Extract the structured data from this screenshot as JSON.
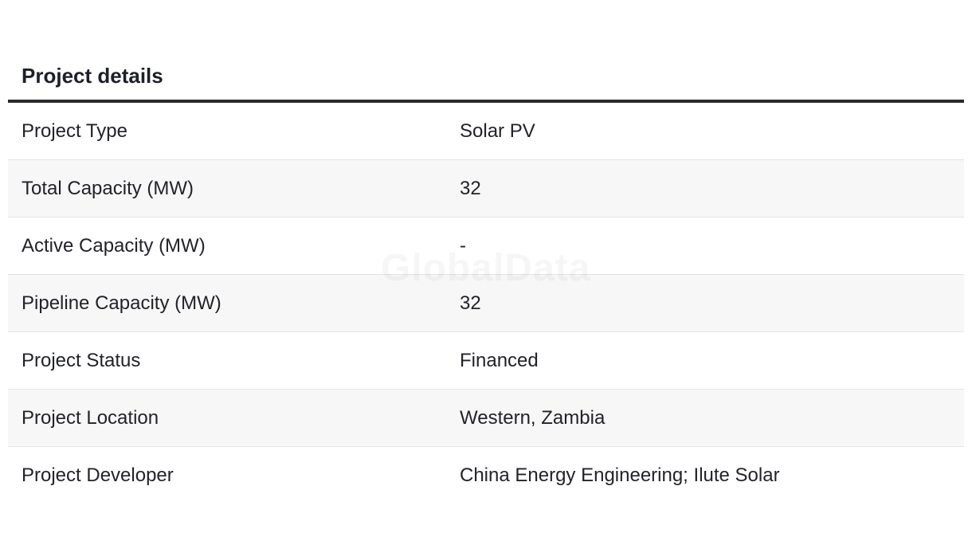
{
  "section": {
    "title": "Project details"
  },
  "watermark": "GlobalData",
  "rows": [
    {
      "label": "Project Type",
      "value": "Solar PV"
    },
    {
      "label": "Total Capacity (MW)",
      "value": "32"
    },
    {
      "label": "Active Capacity (MW)",
      "value": "-"
    },
    {
      "label": "Pipeline Capacity (MW)",
      "value": "32"
    },
    {
      "label": "Project Status",
      "value": "Financed"
    },
    {
      "label": "Project Location",
      "value": "Western, Zambia"
    },
    {
      "label": "Project Developer",
      "value": "China Energy Engineering; Ilute Solar"
    }
  ]
}
